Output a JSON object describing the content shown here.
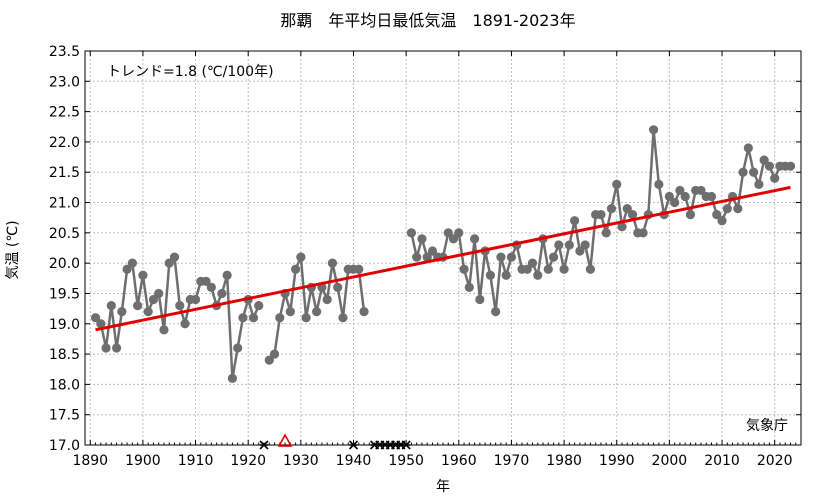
{
  "chart_data": {
    "type": "line",
    "title": "那覇　年平均日最低気温　1891-2023年",
    "xlabel": "年",
    "ylabel": "気温 (℃)",
    "xlim": [
      1889,
      2025
    ],
    "ylim": [
      17.0,
      23.5
    ],
    "grid": true,
    "xticks": [
      1890,
      1900,
      1910,
      1920,
      1930,
      1940,
      1950,
      1960,
      1970,
      1980,
      1990,
      2000,
      2010,
      2020
    ],
    "yticks": [
      17.0,
      17.5,
      18.0,
      18.5,
      19.0,
      19.5,
      20.0,
      20.5,
      21.0,
      21.5,
      22.0,
      22.5,
      23.0,
      23.5
    ],
    "trend_label": "トレンド=1.8 (℃/100年)",
    "source_label": "気象庁",
    "colors": {
      "series": "#6e6e6e",
      "trend": "#e00000",
      "grid": "#bdbdbd",
      "marker_triangle": "#e00000"
    },
    "segments": [
      {
        "x": [
          1891,
          1892,
          1893,
          1894,
          1895,
          1896,
          1897,
          1898,
          1899,
          1900,
          1901,
          1902,
          1903,
          1904,
          1905,
          1906,
          1907,
          1908,
          1909,
          1910,
          1911,
          1912,
          1913,
          1914,
          1915,
          1916,
          1917,
          1918,
          1919,
          1920,
          1921,
          1922
        ],
        "y": [
          19.1,
          19.0,
          18.6,
          19.3,
          18.6,
          19.2,
          19.9,
          20.0,
          19.3,
          19.8,
          19.2,
          19.4,
          19.5,
          18.9,
          20.0,
          20.1,
          19.3,
          19.0,
          19.4,
          19.4,
          19.7,
          19.7,
          19.6,
          19.3,
          19.5,
          19.8,
          18.1,
          18.6,
          19.1,
          19.4,
          19.1,
          19.3
        ]
      },
      {
        "x": [
          1924,
          1925,
          1926,
          1927,
          1928,
          1929,
          1930,
          1931,
          1932,
          1933,
          1934,
          1935,
          1936,
          1937,
          1938,
          1939,
          1940,
          1941,
          1942
        ],
        "y": [
          18.4,
          18.5,
          19.1,
          19.5,
          19.2,
          19.9,
          20.1,
          19.1,
          19.6,
          19.2,
          19.6,
          19.4,
          20.0,
          19.6,
          19.1,
          19.9,
          19.9,
          19.9,
          19.2
        ]
      },
      {
        "x": [
          1951,
          1952,
          1953,
          1954,
          1955,
          1956,
          1957,
          1958,
          1959,
          1960,
          1961,
          1962,
          1963,
          1964,
          1965,
          1966,
          1967,
          1968,
          1969,
          1970,
          1971,
          1972,
          1973,
          1974,
          1975,
          1976,
          1977,
          1978,
          1979,
          1980,
          1981,
          1982,
          1983,
          1984,
          1985,
          1986,
          1987,
          1988,
          1989,
          1990,
          1991,
          1992,
          1993,
          1994,
          1995,
          1996,
          1997,
          1998,
          1999,
          2000,
          2001,
          2002,
          2003,
          2004,
          2005,
          2006,
          2007,
          2008,
          2009,
          2010,
          2011,
          2012,
          2013,
          2014,
          2015,
          2016,
          2017,
          2018,
          2019,
          2020,
          2021,
          2022,
          2023
        ],
        "y": [
          20.5,
          20.1,
          20.4,
          20.1,
          20.2,
          20.1,
          20.1,
          20.5,
          20.4,
          20.5,
          19.9,
          19.6,
          20.4,
          19.4,
          20.2,
          19.8,
          19.2,
          20.1,
          19.8,
          20.1,
          20.3,
          19.9,
          19.9,
          20.0,
          19.8,
          20.4,
          19.9,
          20.1,
          20.3,
          19.9,
          20.3,
          20.7,
          20.2,
          20.3,
          19.9,
          20.8,
          20.8,
          20.5,
          20.9,
          21.3,
          20.6,
          20.9,
          20.8,
          20.5,
          20.5,
          20.8,
          22.2,
          21.3,
          20.8,
          21.1,
          21.0,
          21.2,
          21.1,
          20.8,
          21.2,
          21.2,
          21.1,
          21.1,
          20.8,
          20.7,
          20.9,
          21.1,
          20.9,
          21.5,
          21.9,
          21.5,
          21.3,
          21.7,
          21.6,
          21.4,
          21.6,
          21.6,
          21.6
        ]
      }
    ],
    "trend": {
      "x": [
        1891,
        2023
      ],
      "y": [
        18.9,
        21.25
      ]
    },
    "station_changes_x": [
      1923,
      1940,
      1944,
      1945,
      1946,
      1947,
      1948,
      1949,
      1950
    ],
    "station_change_triangle_x": [
      1927
    ]
  }
}
